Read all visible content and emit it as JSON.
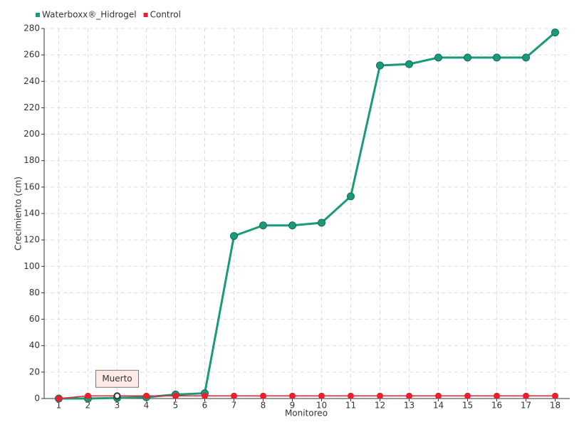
{
  "chart_data": {
    "type": "line",
    "categories": [
      "1",
      "2",
      "3",
      "4",
      "5",
      "6",
      "7",
      "8",
      "9",
      "10",
      "11",
      "12",
      "13",
      "14",
      "15",
      "16",
      "17",
      "18"
    ],
    "series": [
      {
        "name": "Waterboxx®_Hidrogel",
        "color": "#1a9a7a",
        "values": [
          0,
          0,
          0.5,
          1,
          3,
          4,
          123,
          131,
          131,
          133,
          153,
          252,
          253,
          258,
          258,
          258,
          258,
          277
        ]
      },
      {
        "name": "Control",
        "color": "#e8212f",
        "values": [
          0,
          2,
          2,
          2,
          2,
          2,
          2,
          2,
          2,
          2,
          2,
          2,
          2,
          2,
          2,
          2,
          2,
          2
        ]
      }
    ],
    "x_label": "Monitoreo",
    "y_label": "Crecimiento (cm)",
    "annotations": [
      "Muerto"
    ],
    "ylim": [
      0,
      280
    ],
    "yticks": [
      0,
      20,
      40,
      60,
      80,
      100,
      120,
      140,
      160,
      180,
      200,
      220,
      240,
      260,
      280
    ],
    "grid": true,
    "legend": "top-left"
  }
}
